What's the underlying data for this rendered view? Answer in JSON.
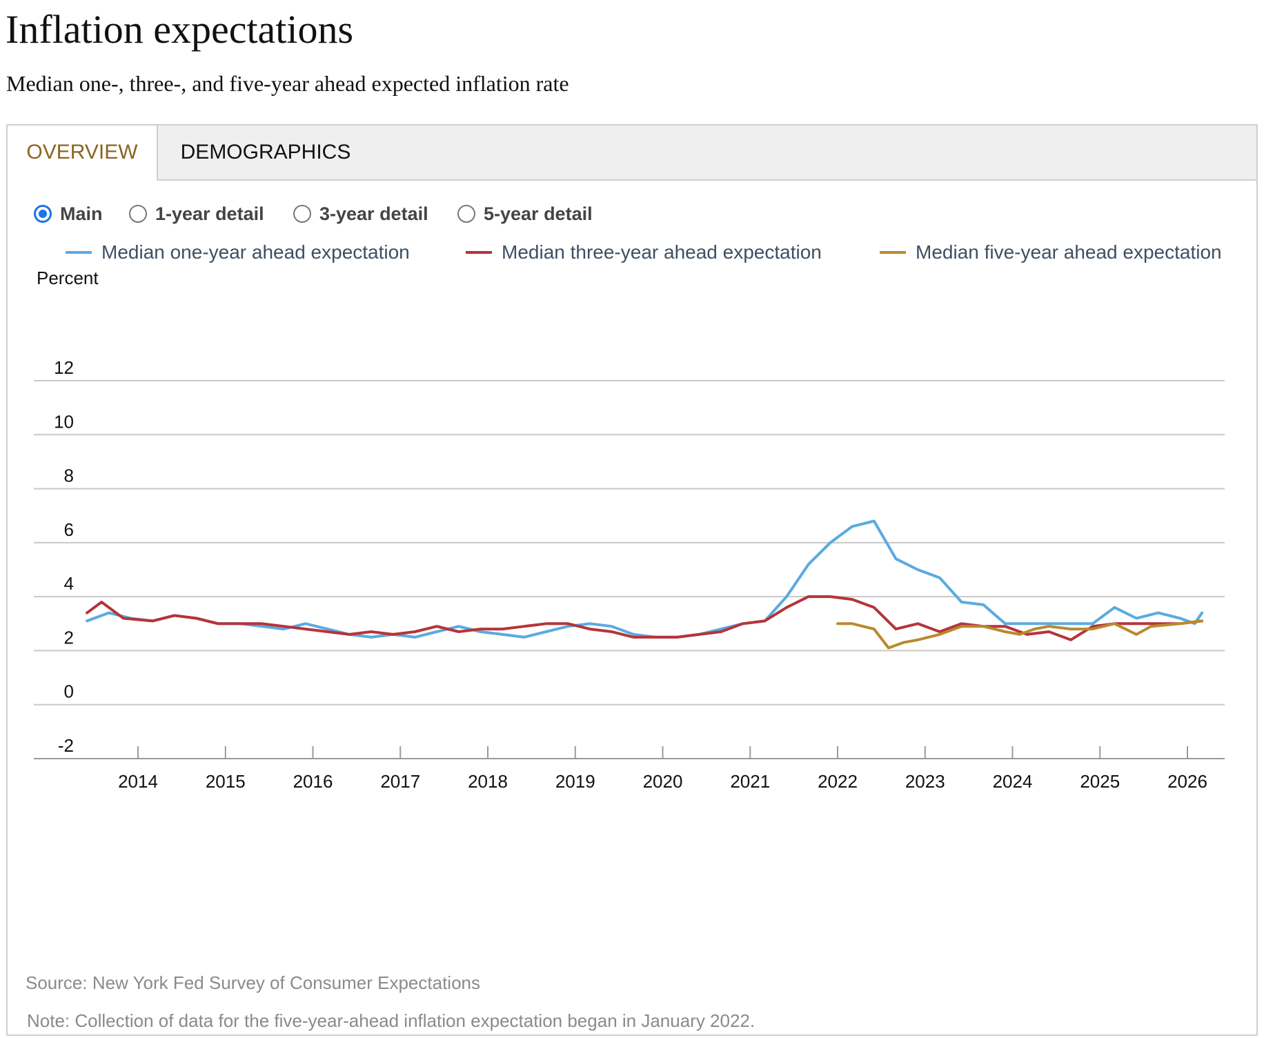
{
  "page": {
    "title": "Inflation expectations",
    "subtitle": "Median one-, three-, and five-year ahead expected inflation rate"
  },
  "tabs": [
    {
      "label": "OVERVIEW",
      "active": true
    },
    {
      "label": "DEMOGRAPHICS",
      "active": false
    }
  ],
  "views": [
    {
      "label": "Main",
      "checked": true
    },
    {
      "label": "1-year detail",
      "checked": false
    },
    {
      "label": "3-year detail",
      "checked": false
    },
    {
      "label": "5-year detail",
      "checked": false
    }
  ],
  "footer": {
    "source": "Source: New York Fed Survey of Consumer Expectations",
    "note": "Note: Collection of data for the five-year-ahead inflation expectation began in January 2022."
  },
  "colors": {
    "one_year": "#5aaae0",
    "three_year": "#b5343a",
    "five_year": "#b88a2e",
    "accent": "#8a6420"
  },
  "chart_data": {
    "type": "line",
    "ylabel": "Percent",
    "xlabel": "",
    "ylim": [
      -2,
      12
    ],
    "yticks": [
      -2,
      0,
      2,
      4,
      6,
      8,
      10,
      12
    ],
    "xticks": [
      "2014",
      "2015",
      "2016",
      "2017",
      "2018",
      "2019",
      "2020",
      "2021",
      "2022",
      "2023",
      "2024",
      "2025",
      "2026"
    ],
    "grid": "horizontal",
    "legend": "top",
    "series": [
      {
        "name": "Median one-year ahead expectation",
        "color": "#5aaae0",
        "points": [
          [
            "2013-06",
            3.1
          ],
          [
            "2013-09",
            3.4
          ],
          [
            "2013-12",
            3.2
          ],
          [
            "2014-03",
            3.1
          ],
          [
            "2014-06",
            3.3
          ],
          [
            "2014-09",
            3.2
          ],
          [
            "2014-12",
            3.0
          ],
          [
            "2015-03",
            3.0
          ],
          [
            "2015-06",
            2.9
          ],
          [
            "2015-09",
            2.8
          ],
          [
            "2015-12",
            3.0
          ],
          [
            "2016-03",
            2.8
          ],
          [
            "2016-06",
            2.6
          ],
          [
            "2016-09",
            2.5
          ],
          [
            "2016-12",
            2.6
          ],
          [
            "2017-03",
            2.5
          ],
          [
            "2017-06",
            2.7
          ],
          [
            "2017-09",
            2.9
          ],
          [
            "2017-12",
            2.7
          ],
          [
            "2018-03",
            2.6
          ],
          [
            "2018-06",
            2.5
          ],
          [
            "2018-09",
            2.7
          ],
          [
            "2018-12",
            2.9
          ],
          [
            "2019-03",
            3.0
          ],
          [
            "2019-06",
            2.9
          ],
          [
            "2019-09",
            2.6
          ],
          [
            "2019-12",
            2.5
          ],
          [
            "2020-03",
            2.5
          ],
          [
            "2020-06",
            2.6
          ],
          [
            "2020-09",
            2.8
          ],
          [
            "2020-12",
            3.0
          ],
          [
            "2021-03",
            3.1
          ],
          [
            "2021-06",
            4.0
          ],
          [
            "2021-09",
            5.2
          ],
          [
            "2021-12",
            6.0
          ],
          [
            "2022-03",
            6.6
          ],
          [
            "2022-06",
            6.8
          ],
          [
            "2022-09",
            5.4
          ],
          [
            "2022-12",
            5.0
          ],
          [
            "2023-03",
            4.7
          ],
          [
            "2023-06",
            3.8
          ],
          [
            "2023-09",
            3.7
          ],
          [
            "2023-12",
            3.0
          ],
          [
            "2024-03",
            3.0
          ],
          [
            "2024-06",
            3.0
          ],
          [
            "2024-09",
            3.0
          ],
          [
            "2024-12",
            3.0
          ],
          [
            "2025-03",
            3.6
          ],
          [
            "2025-06",
            3.2
          ],
          [
            "2025-09",
            3.4
          ],
          [
            "2025-12",
            3.2
          ],
          [
            "2026-02",
            3.0
          ],
          [
            "2026-03",
            3.4
          ]
        ]
      },
      {
        "name": "Median three-year ahead expectation",
        "color": "#b5343a",
        "points": [
          [
            "2013-06",
            3.4
          ],
          [
            "2013-08",
            3.8
          ],
          [
            "2013-11",
            3.2
          ],
          [
            "2014-03",
            3.1
          ],
          [
            "2014-06",
            3.3
          ],
          [
            "2014-09",
            3.2
          ],
          [
            "2014-12",
            3.0
          ],
          [
            "2015-03",
            3.0
          ],
          [
            "2015-06",
            3.0
          ],
          [
            "2015-09",
            2.9
          ],
          [
            "2015-12",
            2.8
          ],
          [
            "2016-03",
            2.7
          ],
          [
            "2016-06",
            2.6
          ],
          [
            "2016-09",
            2.7
          ],
          [
            "2016-12",
            2.6
          ],
          [
            "2017-03",
            2.7
          ],
          [
            "2017-06",
            2.9
          ],
          [
            "2017-09",
            2.7
          ],
          [
            "2017-12",
            2.8
          ],
          [
            "2018-03",
            2.8
          ],
          [
            "2018-06",
            2.9
          ],
          [
            "2018-09",
            3.0
          ],
          [
            "2018-12",
            3.0
          ],
          [
            "2019-03",
            2.8
          ],
          [
            "2019-06",
            2.7
          ],
          [
            "2019-09",
            2.5
          ],
          [
            "2019-12",
            2.5
          ],
          [
            "2020-03",
            2.5
          ],
          [
            "2020-06",
            2.6
          ],
          [
            "2020-09",
            2.7
          ],
          [
            "2020-12",
            3.0
          ],
          [
            "2021-03",
            3.1
          ],
          [
            "2021-06",
            3.6
          ],
          [
            "2021-09",
            4.0
          ],
          [
            "2021-12",
            4.0
          ],
          [
            "2022-03",
            3.9
          ],
          [
            "2022-06",
            3.6
          ],
          [
            "2022-09",
            2.8
          ],
          [
            "2022-12",
            3.0
          ],
          [
            "2023-03",
            2.7
          ],
          [
            "2023-06",
            3.0
          ],
          [
            "2023-09",
            2.9
          ],
          [
            "2023-12",
            2.9
          ],
          [
            "2024-03",
            2.6
          ],
          [
            "2024-06",
            2.7
          ],
          [
            "2024-09",
            2.4
          ],
          [
            "2024-12",
            2.9
          ],
          [
            "2025-03",
            3.0
          ],
          [
            "2025-06",
            3.0
          ],
          [
            "2025-09",
            3.0
          ],
          [
            "2025-12",
            3.0
          ],
          [
            "2026-03",
            3.1
          ]
        ]
      },
      {
        "name": "Median five-year ahead expectation",
        "color": "#b88a2e",
        "points": [
          [
            "2022-01",
            3.0
          ],
          [
            "2022-03",
            3.0
          ],
          [
            "2022-06",
            2.8
          ],
          [
            "2022-08",
            2.1
          ],
          [
            "2022-10",
            2.3
          ],
          [
            "2022-12",
            2.4
          ],
          [
            "2023-03",
            2.6
          ],
          [
            "2023-06",
            2.9
          ],
          [
            "2023-09",
            2.9
          ],
          [
            "2023-12",
            2.7
          ],
          [
            "2024-02",
            2.6
          ],
          [
            "2024-04",
            2.8
          ],
          [
            "2024-06",
            2.9
          ],
          [
            "2024-09",
            2.8
          ],
          [
            "2024-12",
            2.8
          ],
          [
            "2025-03",
            3.0
          ],
          [
            "2025-06",
            2.6
          ],
          [
            "2025-08",
            2.9
          ],
          [
            "2025-12",
            3.0
          ],
          [
            "2026-03",
            3.1
          ]
        ]
      }
    ]
  }
}
